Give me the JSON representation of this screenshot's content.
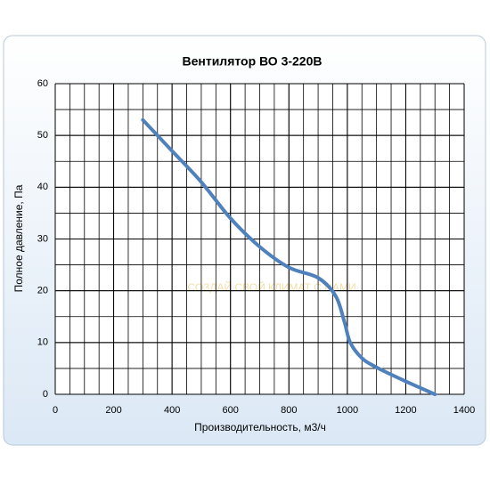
{
  "chart_data": {
    "type": "line",
    "title": "Вентилятор ВО 3-220В",
    "x_label": "Производительность, м3/ч",
    "y_label": "Полное давление, Па",
    "watermark": "СОЗДАЙ СВОЙ КЛИМАТ С НАМИ",
    "x": [
      300,
      400,
      500,
      600,
      700,
      800,
      900,
      960,
      990,
      1010,
      1050,
      1100,
      1200,
      1300
    ],
    "series": [
      {
        "color": "#4f81bd",
        "values": [
          53,
          47,
          41,
          34,
          28.5,
          24.5,
          22.5,
          19,
          14,
          10,
          7,
          5.2,
          2.5,
          0
        ]
      }
    ],
    "xlim": [
      0,
      1400
    ],
    "xticks": [
      0,
      200,
      400,
      600,
      800,
      1000,
      1200,
      1400
    ],
    "ylim": [
      0,
      60
    ],
    "yticks": [
      0,
      10,
      20,
      30,
      40,
      50,
      60
    ],
    "grid": true,
    "minor_grid_step": {
      "x": 50,
      "y": 5
    }
  }
}
